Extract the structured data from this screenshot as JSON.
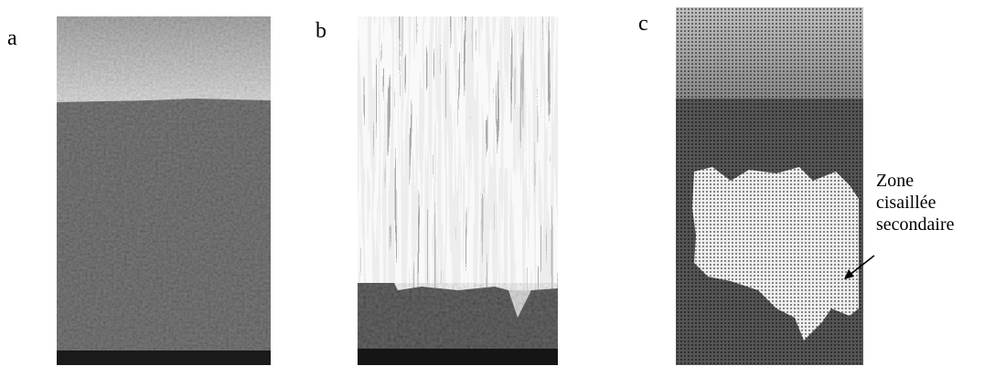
{
  "figure": {
    "panels": [
      {
        "label": "a",
        "image": "micrograph-optical-sample-surface"
      },
      {
        "label": "b",
        "image": "micrograph-vertical-striations"
      },
      {
        "label": "c",
        "image": "micrograph-dotted-halftone-with-bright-zone"
      }
    ],
    "annotation": {
      "lines": [
        "Zone",
        "cisaillée",
        "secondaire"
      ],
      "pointer": "arrow-icon"
    }
  }
}
